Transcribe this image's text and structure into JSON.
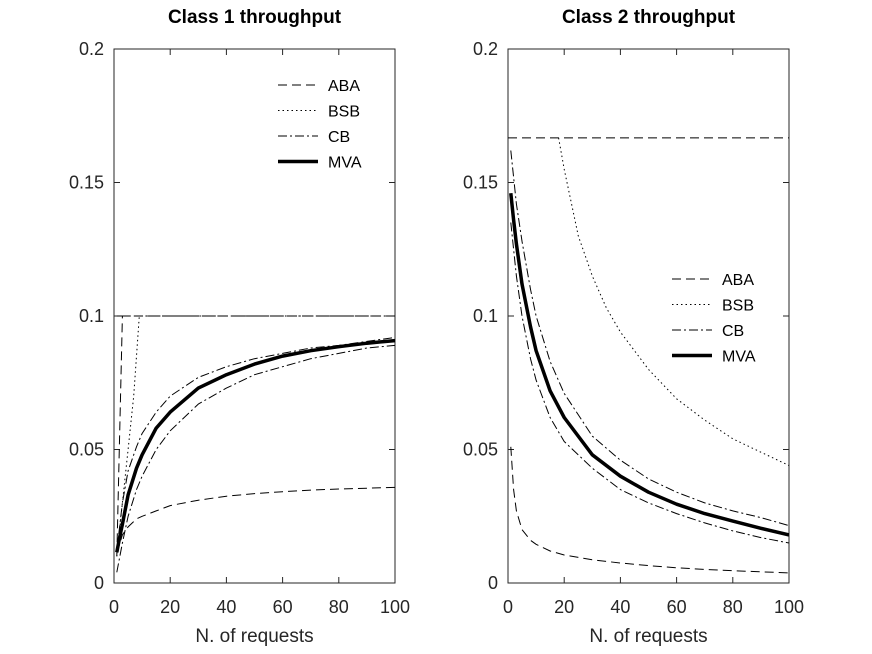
{
  "chart_data": [
    {
      "type": "line",
      "title": "Class 1 throughput",
      "xlabel": "N. of requests",
      "ylabel": "",
      "xlim": [
        0,
        100
      ],
      "ylim": [
        0,
        0.2
      ],
      "xticks": [
        "0",
        "20",
        "40",
        "60",
        "80",
        "100"
      ],
      "yticks": [
        "0",
        "0.05",
        "0.1",
        "0.15",
        "0.2"
      ],
      "legend": [
        "ABA",
        "BSB",
        "CB",
        "MVA"
      ],
      "legend_position": "top-right",
      "grid": false,
      "series": [
        {
          "name": "ABA",
          "style": "dashed",
          "x": [
            1,
            3,
            100
          ],
          "y": [
            0.01,
            0.1,
            0.1
          ]
        },
        {
          "name": "ABA",
          "style": "dashed",
          "x": [
            1,
            3,
            5,
            8,
            10,
            15,
            20,
            30,
            40,
            50,
            60,
            70,
            80,
            90,
            100
          ],
          "y": [
            0.011,
            0.018,
            0.021,
            0.024,
            0.025,
            0.027,
            0.029,
            0.031,
            0.0325,
            0.0335,
            0.0342,
            0.0348,
            0.0352,
            0.0355,
            0.0358
          ]
        },
        {
          "name": "BSB",
          "style": "dotted",
          "x": [
            1,
            3,
            5,
            7,
            9,
            100
          ],
          "y": [
            0.01,
            0.03,
            0.05,
            0.07,
            0.1,
            0.1
          ]
        },
        {
          "name": "CB",
          "style": "dashdot",
          "x": [
            1,
            100
          ],
          "y": [
            0.1,
            0.1
          ]
        },
        {
          "name": "CB",
          "style": "dashdot",
          "x": [
            1,
            3,
            5,
            8,
            10,
            15,
            20,
            30,
            40,
            50,
            60,
            70,
            80,
            90,
            100
          ],
          "y": [
            0.012,
            0.03,
            0.042,
            0.051,
            0.056,
            0.064,
            0.07,
            0.077,
            0.081,
            0.084,
            0.086,
            0.088,
            0.089,
            0.0905,
            0.092
          ]
        },
        {
          "name": "CB",
          "style": "dashdot",
          "x": [
            1,
            3,
            5,
            8,
            10,
            15,
            20,
            30,
            40,
            50,
            60,
            70,
            80,
            90,
            100
          ],
          "y": [
            0.004,
            0.015,
            0.025,
            0.035,
            0.04,
            0.05,
            0.057,
            0.067,
            0.073,
            0.078,
            0.081,
            0.084,
            0.086,
            0.088,
            0.089
          ]
        },
        {
          "name": "MVA",
          "style": "solid-thick",
          "x": [
            1,
            2,
            3,
            5,
            8,
            10,
            15,
            20,
            30,
            40,
            50,
            60,
            70,
            80,
            90,
            100
          ],
          "y": [
            0.0115,
            0.017,
            0.022,
            0.033,
            0.043,
            0.048,
            0.058,
            0.064,
            0.073,
            0.078,
            0.082,
            0.085,
            0.087,
            0.0885,
            0.0898,
            0.0908
          ]
        }
      ]
    },
    {
      "type": "line",
      "title": "Class 2 throughput",
      "xlabel": "N. of requests",
      "ylabel": "",
      "xlim": [
        0,
        100
      ],
      "ylim": [
        0,
        0.2
      ],
      "xticks": [
        "0",
        "20",
        "40",
        "60",
        "80",
        "100"
      ],
      "yticks": [
        "0",
        "0.05",
        "0.1",
        "0.15",
        "0.2"
      ],
      "legend": [
        "ABA",
        "BSB",
        "CB",
        "MVA"
      ],
      "legend_position": "right",
      "grid": false,
      "series": [
        {
          "name": "ABA",
          "style": "dashed",
          "x": [
            0,
            100
          ],
          "y": [
            0.1667,
            0.1667
          ]
        },
        {
          "name": "ABA",
          "style": "dashed",
          "x": [
            1,
            2,
            3,
            5,
            8,
            10,
            15,
            20,
            30,
            40,
            50,
            60,
            70,
            80,
            90,
            100
          ],
          "y": [
            0.051,
            0.035,
            0.027,
            0.02,
            0.016,
            0.0145,
            0.012,
            0.0105,
            0.0087,
            0.0075,
            0.0065,
            0.0057,
            0.0051,
            0.0046,
            0.0042,
            0.0038
          ]
        },
        {
          "name": "BSB",
          "style": "dotted",
          "x": [
            18,
            20,
            25,
            30,
            35,
            40,
            50,
            60,
            70,
            80,
            90,
            100
          ],
          "y": [
            0.1667,
            0.155,
            0.13,
            0.115,
            0.103,
            0.094,
            0.08,
            0.069,
            0.061,
            0.054,
            0.049,
            0.044
          ]
        },
        {
          "name": "CB",
          "style": "dashdot",
          "x": [
            1,
            2,
            3,
            5,
            8,
            10,
            15,
            20,
            30,
            40,
            50,
            60,
            70,
            80,
            90,
            100
          ],
          "y": [
            0.162,
            0.152,
            0.142,
            0.128,
            0.11,
            0.1,
            0.083,
            0.071,
            0.055,
            0.046,
            0.039,
            0.034,
            0.03,
            0.027,
            0.0245,
            0.0215
          ]
        },
        {
          "name": "CB",
          "style": "dashdot",
          "x": [
            1,
            2,
            3,
            5,
            8,
            10,
            15,
            20,
            30,
            40,
            50,
            60,
            70,
            80,
            90,
            100
          ],
          "y": [
            0.135,
            0.125,
            0.115,
            0.1,
            0.084,
            0.076,
            0.062,
            0.053,
            0.043,
            0.035,
            0.03,
            0.026,
            0.0225,
            0.0195,
            0.017,
            0.015
          ]
        },
        {
          "name": "MVA",
          "style": "solid-thick",
          "x": [
            1,
            2,
            3,
            5,
            8,
            10,
            15,
            20,
            30,
            40,
            50,
            60,
            70,
            80,
            90,
            100
          ],
          "y": [
            0.146,
            0.136,
            0.127,
            0.112,
            0.096,
            0.087,
            0.072,
            0.062,
            0.048,
            0.04,
            0.034,
            0.0295,
            0.026,
            0.0232,
            0.0205,
            0.018
          ]
        }
      ]
    }
  ]
}
